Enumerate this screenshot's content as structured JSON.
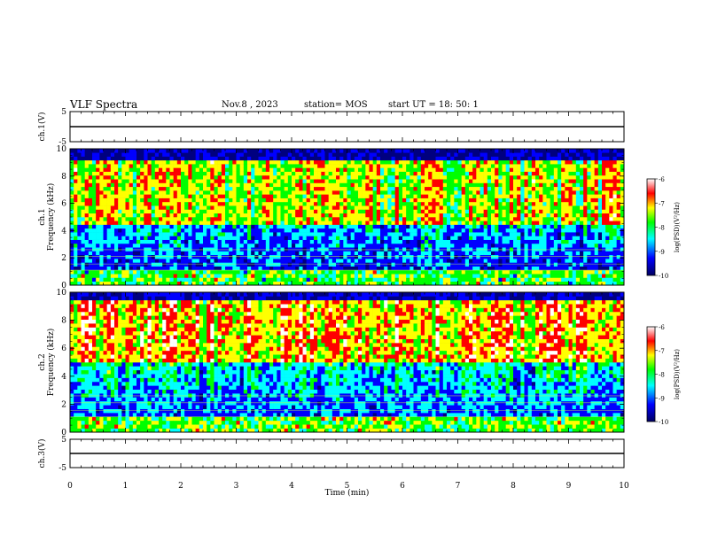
{
  "header": {
    "title": "VLF Spectra",
    "date": "Nov.8 , 2023",
    "station": "station= MOS",
    "start_ut": "start UT = 18: 50: 1"
  },
  "chart_data": [
    {
      "type": "line",
      "name": "waveform-ch1",
      "ylabel": "ch.1(V)",
      "ylim": [
        -5,
        5
      ],
      "yticks": [
        "5",
        "-5"
      ],
      "xlim": [
        0,
        10
      ],
      "level": 0
    },
    {
      "type": "heatmap",
      "name": "spectrogram-ch1",
      "ylabel": "ch.1",
      "ylabel2": "Frequency (kHz)",
      "ylim": [
        0,
        10
      ],
      "yticks": [
        "0",
        "2",
        "4",
        "6",
        "8",
        "10"
      ],
      "xlim": [
        0,
        10
      ],
      "colorbar": {
        "label": "log(PSD)(V²/Hz)",
        "range": [
          -10,
          -6
        ],
        "ticks": [
          "-6",
          "-7",
          "-8",
          "-9",
          "-10"
        ]
      }
    },
    {
      "type": "heatmap",
      "name": "spectrogram-ch2",
      "ylabel": "ch.2",
      "ylabel2": "Frequency (kHz)",
      "ylim": [
        0,
        10
      ],
      "yticks": [
        "0",
        "2",
        "4",
        "6",
        "8",
        "10"
      ],
      "xlim": [
        0,
        10
      ],
      "colorbar": {
        "label": "log(PSD)(V²/Hz)",
        "range": [
          -10,
          -6
        ],
        "ticks": [
          "-6",
          "-7",
          "-8",
          "-9",
          "-10"
        ]
      }
    },
    {
      "type": "line",
      "name": "waveform-ch3",
      "ylabel": "ch.3(V)",
      "ylim": [
        -5,
        5
      ],
      "yticks": [
        "5",
        "-5"
      ],
      "xlim": [
        0,
        10
      ],
      "xticks": [
        "0",
        "1",
        "2",
        "3",
        "4",
        "5",
        "6",
        "7",
        "8",
        "9",
        "10"
      ],
      "xlabel": "Time (min)",
      "level": 0
    }
  ],
  "colors": {
    "scale": [
      "#000080",
      "#0000ff",
      "#00ffff",
      "#00ff00",
      "#ffff00",
      "#ff0000",
      "#ffffff"
    ]
  }
}
